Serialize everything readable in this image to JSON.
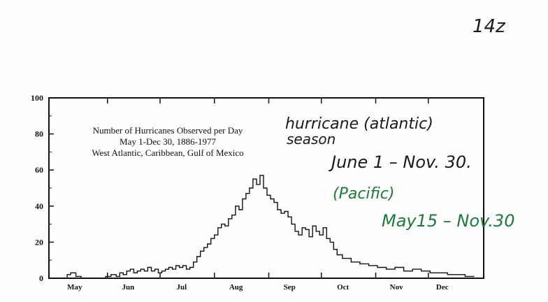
{
  "page_number": "14z",
  "chart_data": {
    "type": "line",
    "title": "Number of Hurricanes Observed per Day",
    "subtitle_lines": [
      "May 1-Dec 30, 1886-1977",
      "West Atlantic, Caribbean, Gulf of Mexico"
    ],
    "xlabel": "",
    "ylabel": "",
    "ylim": [
      0,
      100
    ],
    "yticks": [
      "0",
      "20",
      "40",
      "60",
      "80",
      "100"
    ],
    "month_labels": [
      "May",
      "Jun",
      "Jul",
      "Aug",
      "Sep",
      "Oct",
      "Nov",
      "Dec"
    ],
    "grid": false,
    "series": [
      {
        "x_day_of_season": [
          0,
          5,
          8,
          10,
          13,
          16,
          20,
          25,
          30,
          33,
          36,
          38,
          40,
          42,
          44,
          46,
          48,
          50,
          52,
          54,
          56,
          58,
          60,
          62,
          64,
          66,
          68,
          70,
          72,
          74,
          76,
          78,
          80,
          82,
          84,
          86,
          88,
          90,
          92,
          94,
          96,
          98,
          100,
          102,
          104,
          106,
          108,
          110,
          112,
          114,
          116,
          118,
          120,
          122,
          124,
          126,
          128,
          130,
          132,
          134,
          136,
          138,
          140,
          142,
          144,
          146,
          148,
          150,
          152,
          154,
          156,
          158,
          160,
          162,
          165,
          170,
          175,
          180,
          185,
          190,
          195,
          200,
          205,
          210,
          215,
          220,
          225,
          230,
          235,
          240
        ],
        "values": [
          0,
          0,
          2,
          3,
          1,
          0,
          0,
          0,
          1,
          2,
          1,
          3,
          2,
          4,
          5,
          3,
          4,
          5,
          4,
          6,
          4,
          5,
          3,
          4,
          5,
          6,
          5,
          7,
          6,
          7,
          5,
          6,
          9,
          12,
          15,
          17,
          19,
          22,
          24,
          28,
          30,
          29,
          33,
          35,
          40,
          38,
          44,
          47,
          50,
          55,
          52,
          57,
          50,
          46,
          44,
          42,
          38,
          36,
          37,
          34,
          30,
          26,
          24,
          28,
          27,
          23,
          29,
          26,
          24,
          28,
          22,
          20,
          16,
          13,
          11,
          9,
          8,
          7,
          6,
          5,
          6,
          4,
          5,
          4,
          3,
          3,
          2,
          2,
          1,
          1
        ]
      }
    ]
  },
  "annotations": {
    "atlantic_line1": "hurricane (atlantic)",
    "atlantic_line2": "season",
    "atlantic_dates": "June 1 – Nov. 30.",
    "pacific_label": "(Pacific)",
    "pacific_dates": "May15 – Nov.30"
  },
  "colors": {
    "ink": "#111111",
    "green_ink": "#1f7a3a",
    "paper": "#ffffff"
  }
}
